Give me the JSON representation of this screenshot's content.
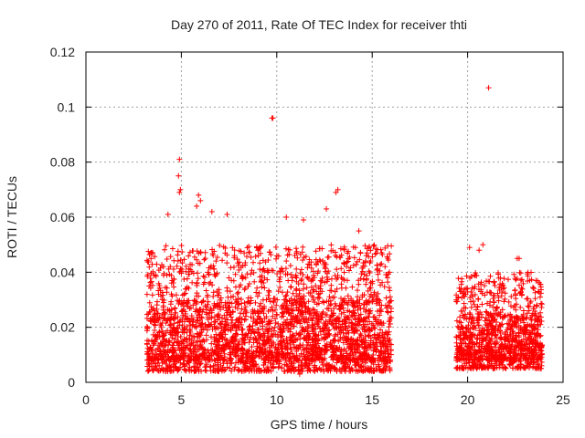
{
  "chart_data": {
    "type": "scatter",
    "title": "Day 270 of 2011, Rate Of TEC Index for receiver thti",
    "xlabel": "GPS time / hours",
    "ylabel": "ROTI / TECUs",
    "xlim": [
      0,
      25
    ],
    "ylim": [
      0,
      0.12
    ],
    "xticks": [
      0,
      5,
      10,
      15,
      20,
      25
    ],
    "xtick_labels": [
      "0",
      "5",
      "10",
      "15",
      "20",
      "25"
    ],
    "yticks": [
      0,
      0.02,
      0.04,
      0.06,
      0.08,
      0.1,
      0.12
    ],
    "ytick_labels": [
      "0",
      "0.02",
      "0.04",
      "0.06",
      "0.08",
      "0.1",
      "0.12"
    ],
    "grid": true,
    "marker": "+",
    "color": "#ff0000",
    "series": [
      {
        "name": "ROTI",
        "points": [
          [
            4.9,
            0.081
          ],
          [
            4.85,
            0.075
          ],
          [
            4.95,
            0.07
          ],
          [
            4.9,
            0.069
          ],
          [
            9.8,
            0.096
          ],
          [
            9.75,
            0.096
          ],
          [
            21.1,
            0.107
          ],
          [
            5.9,
            0.068
          ],
          [
            6.0,
            0.066
          ],
          [
            5.8,
            0.064
          ],
          [
            13.2,
            0.07
          ],
          [
            13.1,
            0.069
          ],
          [
            6.6,
            0.062
          ],
          [
            7.4,
            0.061
          ],
          [
            4.3,
            0.061
          ],
          [
            10.5,
            0.06
          ],
          [
            12.6,
            0.063
          ],
          [
            11.4,
            0.059
          ],
          [
            14.3,
            0.055
          ],
          [
            3.4,
            0.047
          ],
          [
            3.5,
            0.047
          ],
          [
            20.1,
            0.049
          ],
          [
            20.8,
            0.05
          ],
          [
            20.6,
            0.048
          ],
          [
            22.6,
            0.045
          ],
          [
            22.7,
            0.045
          ],
          [
            15.9,
            0.04
          ],
          [
            15.8,
            0.038
          ],
          [
            19.6,
            0.033
          ],
          [
            19.5,
            0.031
          ],
          [
            23.7,
            0.033
          ],
          [
            23.8,
            0.031
          ],
          [
            20.3,
            0.005
          ],
          [
            11.2,
            0.003
          ],
          [
            11.3,
            0.004
          ]
        ]
      }
    ],
    "clusters": [
      {
        "x_range": [
          3.2,
          16.0
        ],
        "y_range": [
          0.004,
          0.05
        ],
        "count": 1900,
        "seed": 7
      },
      {
        "x_range": [
          3.2,
          16.0
        ],
        "y_range": [
          0.008,
          0.03
        ],
        "count": 1100,
        "seed": 11
      },
      {
        "x_range": [
          19.4,
          23.9
        ],
        "y_range": [
          0.005,
          0.04
        ],
        "count": 650,
        "seed": 19
      },
      {
        "x_range": [
          19.4,
          23.9
        ],
        "y_range": [
          0.008,
          0.025
        ],
        "count": 450,
        "seed": 23
      }
    ]
  }
}
